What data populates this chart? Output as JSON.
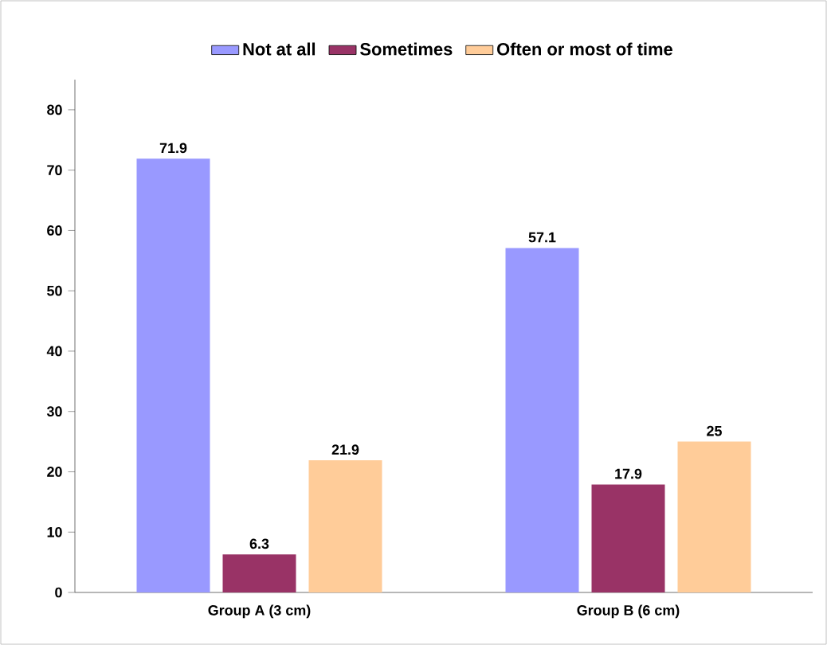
{
  "chart_data": {
    "type": "bar",
    "categories": [
      "Group A (3 cm)",
      "Group B (6 cm)"
    ],
    "series": [
      {
        "name": "Not at all",
        "color": "#9999ff",
        "values": [
          71.9,
          57.1
        ]
      },
      {
        "name": "Sometimes",
        "color": "#993366",
        "values": [
          6.3,
          17.9
        ]
      },
      {
        "name": "Often or most of time",
        "color": "#ffcc99",
        "values": [
          21.9,
          25
        ]
      }
    ],
    "ylim": [
      0,
      85
    ],
    "yticks": [
      0,
      10,
      20,
      30,
      40,
      50,
      60,
      70,
      80
    ],
    "data_labels": true,
    "legend": "top",
    "grid": false
  }
}
